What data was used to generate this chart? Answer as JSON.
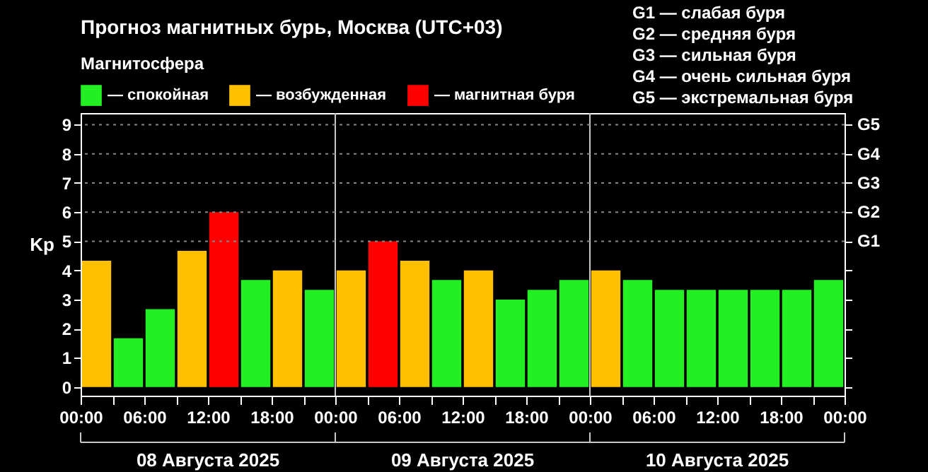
{
  "chart_data": {
    "type": "bar",
    "title": "Прогноз магнитных бурь, Москва (UTC+03)",
    "ylabel": "Kp",
    "legend_title": "Магнитосфера",
    "legend": "top left",
    "x": [
      "2025-08-08T01:30",
      "2025-08-08T04:30",
      "2025-08-08T07:30",
      "2025-08-08T10:30",
      "2025-08-08T13:30",
      "2025-08-08T16:30",
      "2025-08-08T19:30",
      "2025-08-08T22:30",
      "2025-08-09T01:30",
      "2025-08-09T04:30",
      "2025-08-09T07:30",
      "2025-08-09T10:30",
      "2025-08-09T13:30",
      "2025-08-09T16:30",
      "2025-08-09T19:30",
      "2025-08-09T22:30",
      "2025-08-10T01:30",
      "2025-08-10T04:30",
      "2025-08-10T07:30",
      "2025-08-10T10:30",
      "2025-08-10T13:30",
      "2025-08-10T16:30",
      "2025-08-10T19:30",
      "2025-08-10T22:30"
    ],
    "series": [
      {
        "name": "— спокойная",
        "color": "#22f022",
        "values": [
          null,
          1.67,
          2.67,
          null,
          null,
          3.67,
          null,
          3.33,
          null,
          null,
          null,
          3.67,
          null,
          3.0,
          3.33,
          3.67,
          null,
          3.67,
          3.33,
          3.33,
          3.33,
          3.33,
          3.33,
          3.67
        ]
      },
      {
        "name": "— возбужденная",
        "color": "#ffc000",
        "values": [
          4.33,
          null,
          null,
          4.67,
          null,
          null,
          4.0,
          null,
          4.0,
          null,
          4.33,
          null,
          4.0,
          null,
          null,
          null,
          4.0,
          null,
          null,
          null,
          null,
          null,
          null,
          null
        ]
      },
      {
        "name": "— магнитная буря",
        "color": "#ff0000",
        "values": [
          null,
          null,
          null,
          null,
          6.0,
          null,
          null,
          null,
          null,
          5.0,
          null,
          null,
          null,
          null,
          null,
          null,
          null,
          null,
          null,
          null,
          null,
          null,
          null,
          null
        ]
      }
    ],
    "xlim": [
      "2025-08-08T00:00",
      "2025-08-11T00:00"
    ],
    "xticks": [
      {
        "value": "2025-08-08T00:00",
        "label": "00:00"
      },
      {
        "value": "2025-08-08T03:00",
        "label": null
      },
      {
        "value": "2025-08-08T06:00",
        "label": "06:00"
      },
      {
        "value": "2025-08-08T09:00",
        "label": null
      },
      {
        "value": "2025-08-08T12:00",
        "label": "12:00"
      },
      {
        "value": "2025-08-08T15:00",
        "label": null
      },
      {
        "value": "2025-08-08T18:00",
        "label": "18:00"
      },
      {
        "value": "2025-08-08T21:00",
        "label": null
      },
      {
        "value": "2025-08-09T00:00",
        "label": "00:00"
      },
      {
        "value": "2025-08-09T03:00",
        "label": null
      },
      {
        "value": "2025-08-09T06:00",
        "label": "06:00"
      },
      {
        "value": "2025-08-09T09:00",
        "label": null
      },
      {
        "value": "2025-08-09T12:00",
        "label": "12:00"
      },
      {
        "value": "2025-08-09T15:00",
        "label": null
      },
      {
        "value": "2025-08-09T18:00",
        "label": "18:00"
      },
      {
        "value": "2025-08-09T21:00",
        "label": null
      },
      {
        "value": "2025-08-10T00:00",
        "label": "00:00"
      },
      {
        "value": "2025-08-10T03:00",
        "label": null
      },
      {
        "value": "2025-08-10T06:00",
        "label": "06:00"
      },
      {
        "value": "2025-08-10T09:00",
        "label": null
      },
      {
        "value": "2025-08-10T12:00",
        "label": "12:00"
      },
      {
        "value": "2025-08-10T15:00",
        "label": null
      },
      {
        "value": "2025-08-10T18:00",
        "label": "18:00"
      },
      {
        "value": "2025-08-10T21:00",
        "label": null
      },
      {
        "value": "2025-08-11T00:00",
        "label": "00:00"
      }
    ],
    "ylim": [
      -0.3,
      9.4
    ],
    "yticks": [
      0,
      1,
      2,
      3,
      4,
      5,
      6,
      7,
      8,
      9
    ],
    "ref_lines": [
      {
        "axis": "x",
        "value": "2025-08-09T00:00",
        "color": "#c8c8c8"
      },
      {
        "axis": "x",
        "value": "2025-08-10T00:00",
        "color": "#c8c8c8"
      },
      {
        "axis": "y",
        "value": 5,
        "label": "G1",
        "color": "#888888",
        "line_style": "dotted"
      },
      {
        "axis": "y",
        "value": 6,
        "label": "G2",
        "color": "#888888",
        "line_style": "dotted"
      },
      {
        "axis": "y",
        "value": 7,
        "label": "G3",
        "color": "#888888",
        "line_style": "dotted"
      },
      {
        "axis": "y",
        "value": 8,
        "label": "G4",
        "color": "#888888",
        "line_style": "dotted"
      },
      {
        "axis": "y",
        "value": 9,
        "label": "G5",
        "color": "#888888",
        "line_style": "dotted"
      }
    ],
    "annotations": [
      "G1 — слабая буря",
      "G2 — средняя буря",
      "G3 — сильная буря",
      "G4 — очень сильная буря",
      "G5 — экстремальная буря",
      "08 Августа 2025",
      "09 Августа 2025",
      "10 Августа 2025"
    ]
  }
}
